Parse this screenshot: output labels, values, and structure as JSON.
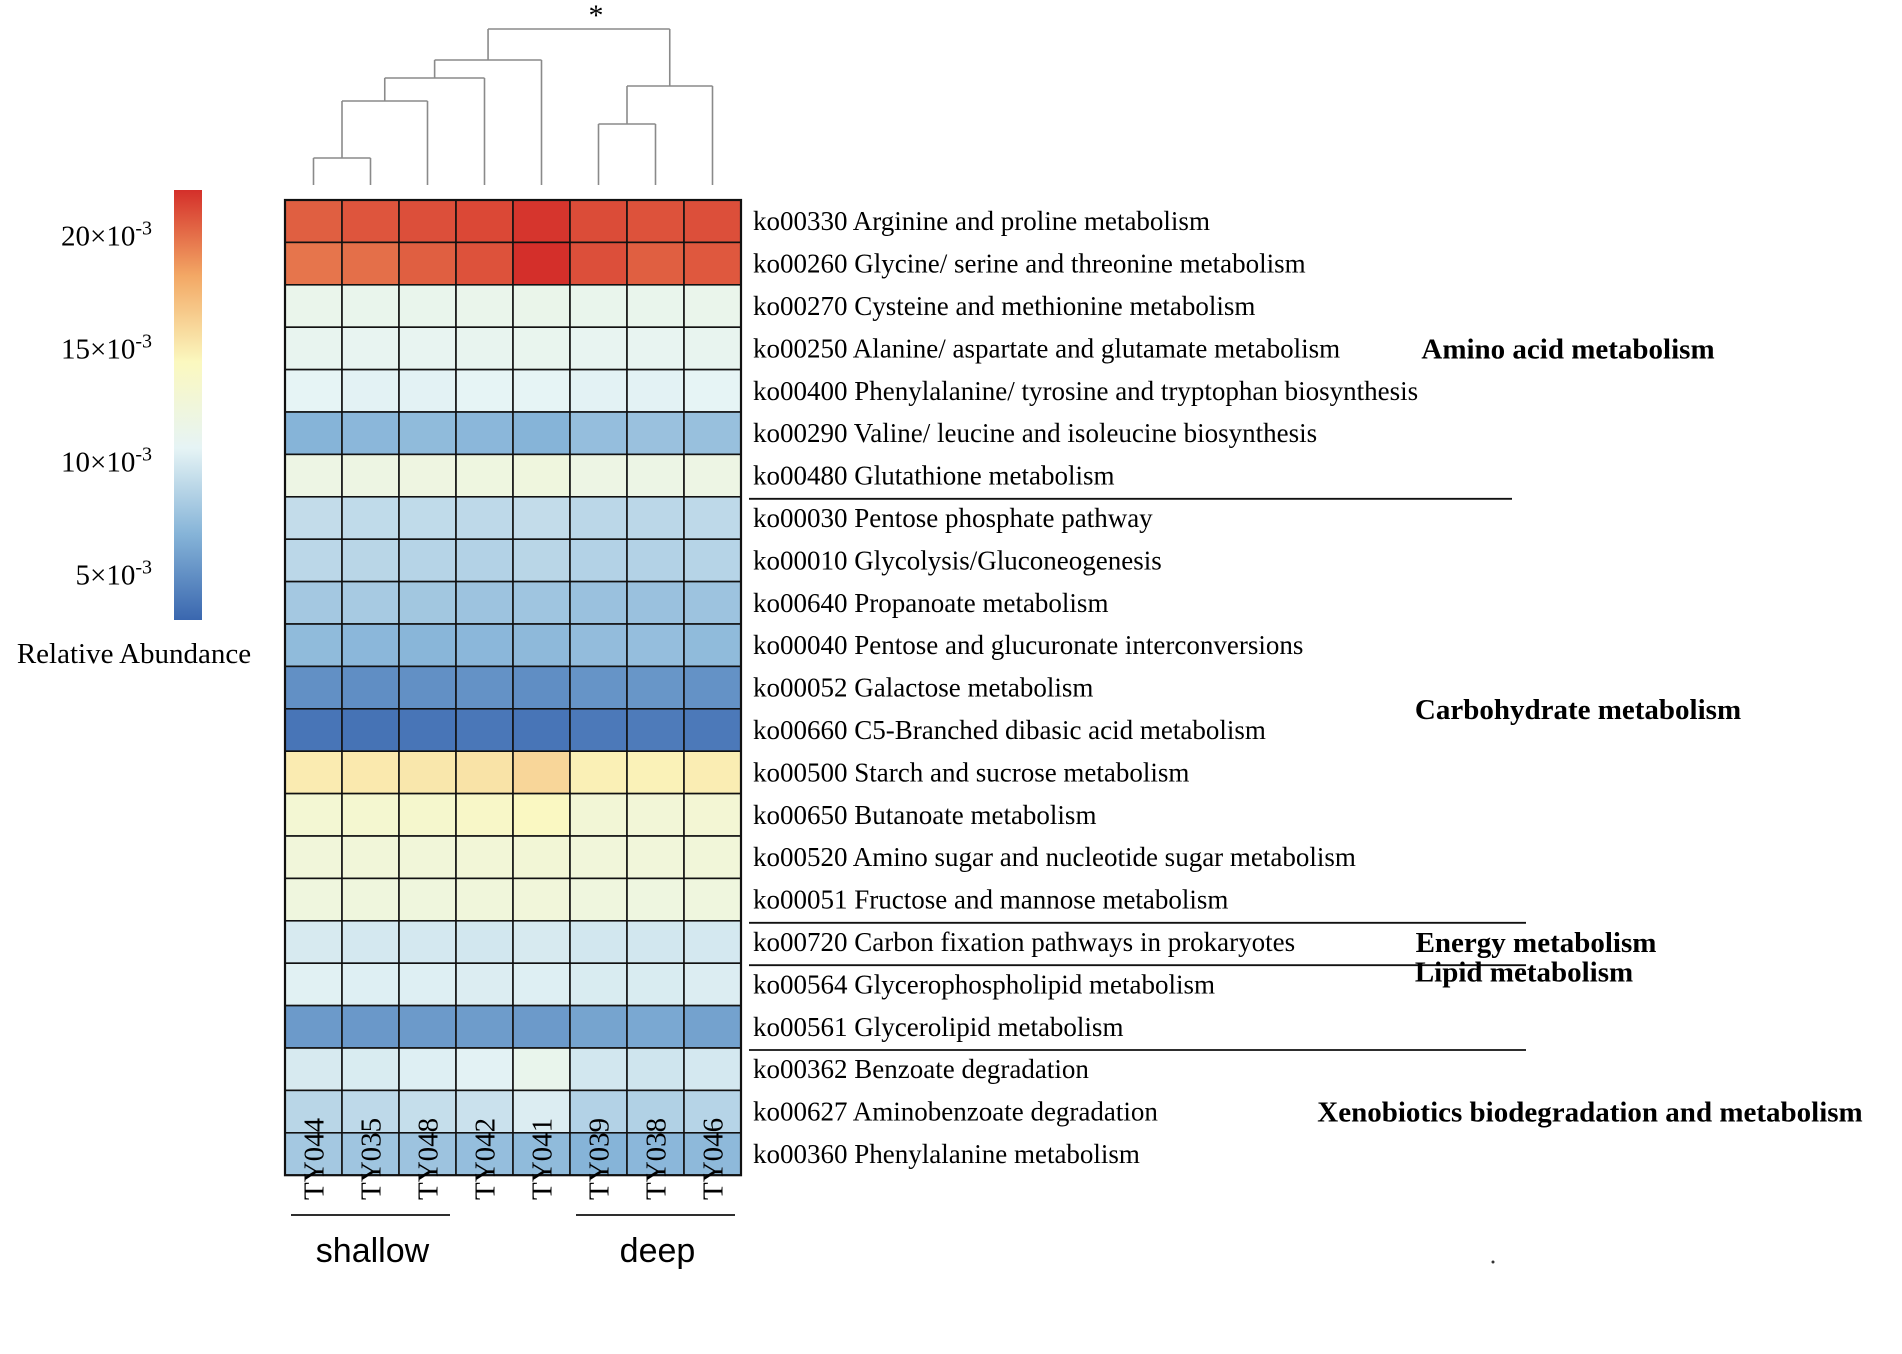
{
  "chart_data": {
    "type": "heatmap",
    "title": "",
    "significance_marker": "*",
    "samples": [
      "TY044",
      "TY035",
      "TY048",
      "TY042",
      "TY041",
      "TY039",
      "TY038",
      "TY046"
    ],
    "sample_groups": [
      {
        "name": "shallow",
        "samples": [
          "TY044",
          "TY035",
          "TY048"
        ]
      },
      {
        "name": "deep",
        "samples": [
          "TY039",
          "TY038",
          "TY046"
        ]
      }
    ],
    "colorbar": {
      "label": "Relative Abundance",
      "range": [
        0.003,
        0.022
      ],
      "ticks": [
        {
          "value": 0.005,
          "mantissa": "5",
          "times": "×",
          "base": "10",
          "exp": "-3"
        },
        {
          "value": 0.01,
          "mantissa": "10",
          "times": "×",
          "base": "10",
          "exp": "-3"
        },
        {
          "value": 0.015,
          "mantissa": "15",
          "times": "×",
          "base": "10",
          "exp": "-3"
        },
        {
          "value": 0.02,
          "mantissa": "20",
          "times": "×",
          "base": "10",
          "exp": "-3"
        }
      ],
      "colors": [
        "#3a67af",
        "#86b4d8",
        "#e6f4f5",
        "#fbf8bf",
        "#f3a865",
        "#d42f2a"
      ]
    },
    "pathways": [
      {
        "id": "ko00330",
        "name": "Arginine and proline metabolism",
        "values": [
          0.0205,
          0.0208,
          0.021,
          0.0212,
          0.0218,
          0.0211,
          0.0209,
          0.021
        ]
      },
      {
        "id": "ko00260",
        "name": "Glycine/ serine and threonine metabolism",
        "values": [
          0.0198,
          0.02,
          0.0205,
          0.0209,
          0.022,
          0.021,
          0.0205,
          0.0207
        ]
      },
      {
        "id": "ko00270",
        "name": "Cysteine and methionine metabolism",
        "values": [
          0.0113,
          0.0112,
          0.0112,
          0.0113,
          0.0114,
          0.0112,
          0.0112,
          0.0113
        ]
      },
      {
        "id": "ko00250",
        "name": "Alanine/ aspartate and glutamate metabolism",
        "values": [
          0.011,
          0.0109,
          0.0109,
          0.011,
          0.0111,
          0.0109,
          0.0109,
          0.011
        ]
      },
      {
        "id": "ko00400",
        "name": "Phenylalanine/ tyrosine and tryptophan biosynthesis",
        "values": [
          0.0106,
          0.0105,
          0.0105,
          0.0106,
          0.0106,
          0.0105,
          0.0105,
          0.0106
        ]
      },
      {
        "id": "ko00290",
        "name": "Valine/ leucine and isoleucine biosynthesis",
        "values": [
          0.0068,
          0.007,
          0.0072,
          0.007,
          0.0068,
          0.0074,
          0.0076,
          0.0075
        ]
      },
      {
        "id": "ko00480",
        "name": "Glutathione metabolism",
        "values": [
          0.0118,
          0.0119,
          0.012,
          0.0121,
          0.0122,
          0.0118,
          0.0117,
          0.0118
        ]
      },
      {
        "id": "ko00030",
        "name": "Pentose phosphate pathway",
        "values": [
          0.0092,
          0.0091,
          0.0091,
          0.009,
          0.0092,
          0.0089,
          0.0089,
          0.009
        ]
      },
      {
        "id": "ko00010",
        "name": "Glycolysis/Gluconeogenesis",
        "values": [
          0.0089,
          0.0088,
          0.0087,
          0.0086,
          0.0088,
          0.0086,
          0.0086,
          0.0087
        ]
      },
      {
        "id": "ko00640",
        "name": "Propanoate metabolism",
        "values": [
          0.008,
          0.0081,
          0.0079,
          0.0077,
          0.0078,
          0.0076,
          0.0076,
          0.0077
        ]
      },
      {
        "id": "ko00040",
        "name": "Pentose and glucuronate interconversions",
        "values": [
          0.0072,
          0.007,
          0.0069,
          0.007,
          0.0071,
          0.0073,
          0.0074,
          0.0072
        ]
      },
      {
        "id": "ko00052",
        "name": "Galactose metabolism",
        "values": [
          0.005,
          0.0049,
          0.005,
          0.0051,
          0.0049,
          0.0052,
          0.0053,
          0.0051
        ]
      },
      {
        "id": "ko00660",
        "name": "C5-Branched dibasic acid metabolism",
        "values": [
          0.0037,
          0.0036,
          0.0037,
          0.0038,
          0.0037,
          0.0039,
          0.004,
          0.0039
        ]
      },
      {
        "id": "ko00500",
        "name": "Starch and sucrose metabolism",
        "values": [
          0.015,
          0.0151,
          0.0152,
          0.0154,
          0.016,
          0.0148,
          0.0147,
          0.0149
        ]
      },
      {
        "id": "ko00650",
        "name": "Butanoate metabolism",
        "values": [
          0.013,
          0.0132,
          0.0134,
          0.0138,
          0.0142,
          0.0128,
          0.0127,
          0.0129
        ]
      },
      {
        "id": "ko00520",
        "name": "Amino sugar and nucleotide sugar metabolism",
        "values": [
          0.0125,
          0.0126,
          0.0126,
          0.0127,
          0.0128,
          0.0125,
          0.0125,
          0.0126
        ]
      },
      {
        "id": "ko00051",
        "name": "Fructose and mannose metabolism",
        "values": [
          0.0122,
          0.0123,
          0.0123,
          0.0124,
          0.0125,
          0.0122,
          0.0121,
          0.0122
        ]
      },
      {
        "id": "ko00720",
        "name": "Carbon fixation pathways in prokaryotes",
        "values": [
          0.01,
          0.0099,
          0.0099,
          0.0098,
          0.01,
          0.0098,
          0.0098,
          0.0099
        ]
      },
      {
        "id": "ko00564",
        "name": "Glycerophospholipid metabolism",
        "values": [
          0.0104,
          0.0103,
          0.0103,
          0.0102,
          0.0103,
          0.0101,
          0.0101,
          0.0102
        ]
      },
      {
        "id": "ko00561",
        "name": "Glycerolipid metabolism",
        "values": [
          0.0055,
          0.0054,
          0.0055,
          0.0056,
          0.0055,
          0.006,
          0.0062,
          0.0059
        ]
      },
      {
        "id": "ko00362",
        "name": "Benzoate degradation",
        "values": [
          0.01,
          0.0101,
          0.0103,
          0.0105,
          0.0112,
          0.0098,
          0.0097,
          0.0099
        ]
      },
      {
        "id": "ko00627",
        "name": "Aminobenzoate degradation",
        "values": [
          0.0088,
          0.009,
          0.0093,
          0.0095,
          0.0102,
          0.0086,
          0.0085,
          0.0087
        ]
      },
      {
        "id": "ko00360",
        "name": "Phenylalanine metabolism",
        "values": [
          0.008,
          0.0078,
          0.0077,
          0.0074,
          0.0072,
          0.0068,
          0.007,
          0.0071
        ]
      }
    ],
    "categories": [
      {
        "name": "Amino acid metabolism",
        "rows": [
          0,
          6
        ]
      },
      {
        "name": "Carbohydrate metabolism",
        "rows": [
          7,
          16
        ]
      },
      {
        "name": "Energy metabolism",
        "rows": [
          17,
          17
        ]
      },
      {
        "name": "Lipid metabolism",
        "rows": [
          18,
          19
        ]
      },
      {
        "name": "Xenobiotics biodegradation and metabolism",
        "rows": [
          20,
          22
        ]
      }
    ],
    "dendrogram": "((((TY044,TY035),TY048),TY042),TY041),((TY039,TY038),TY046)"
  }
}
